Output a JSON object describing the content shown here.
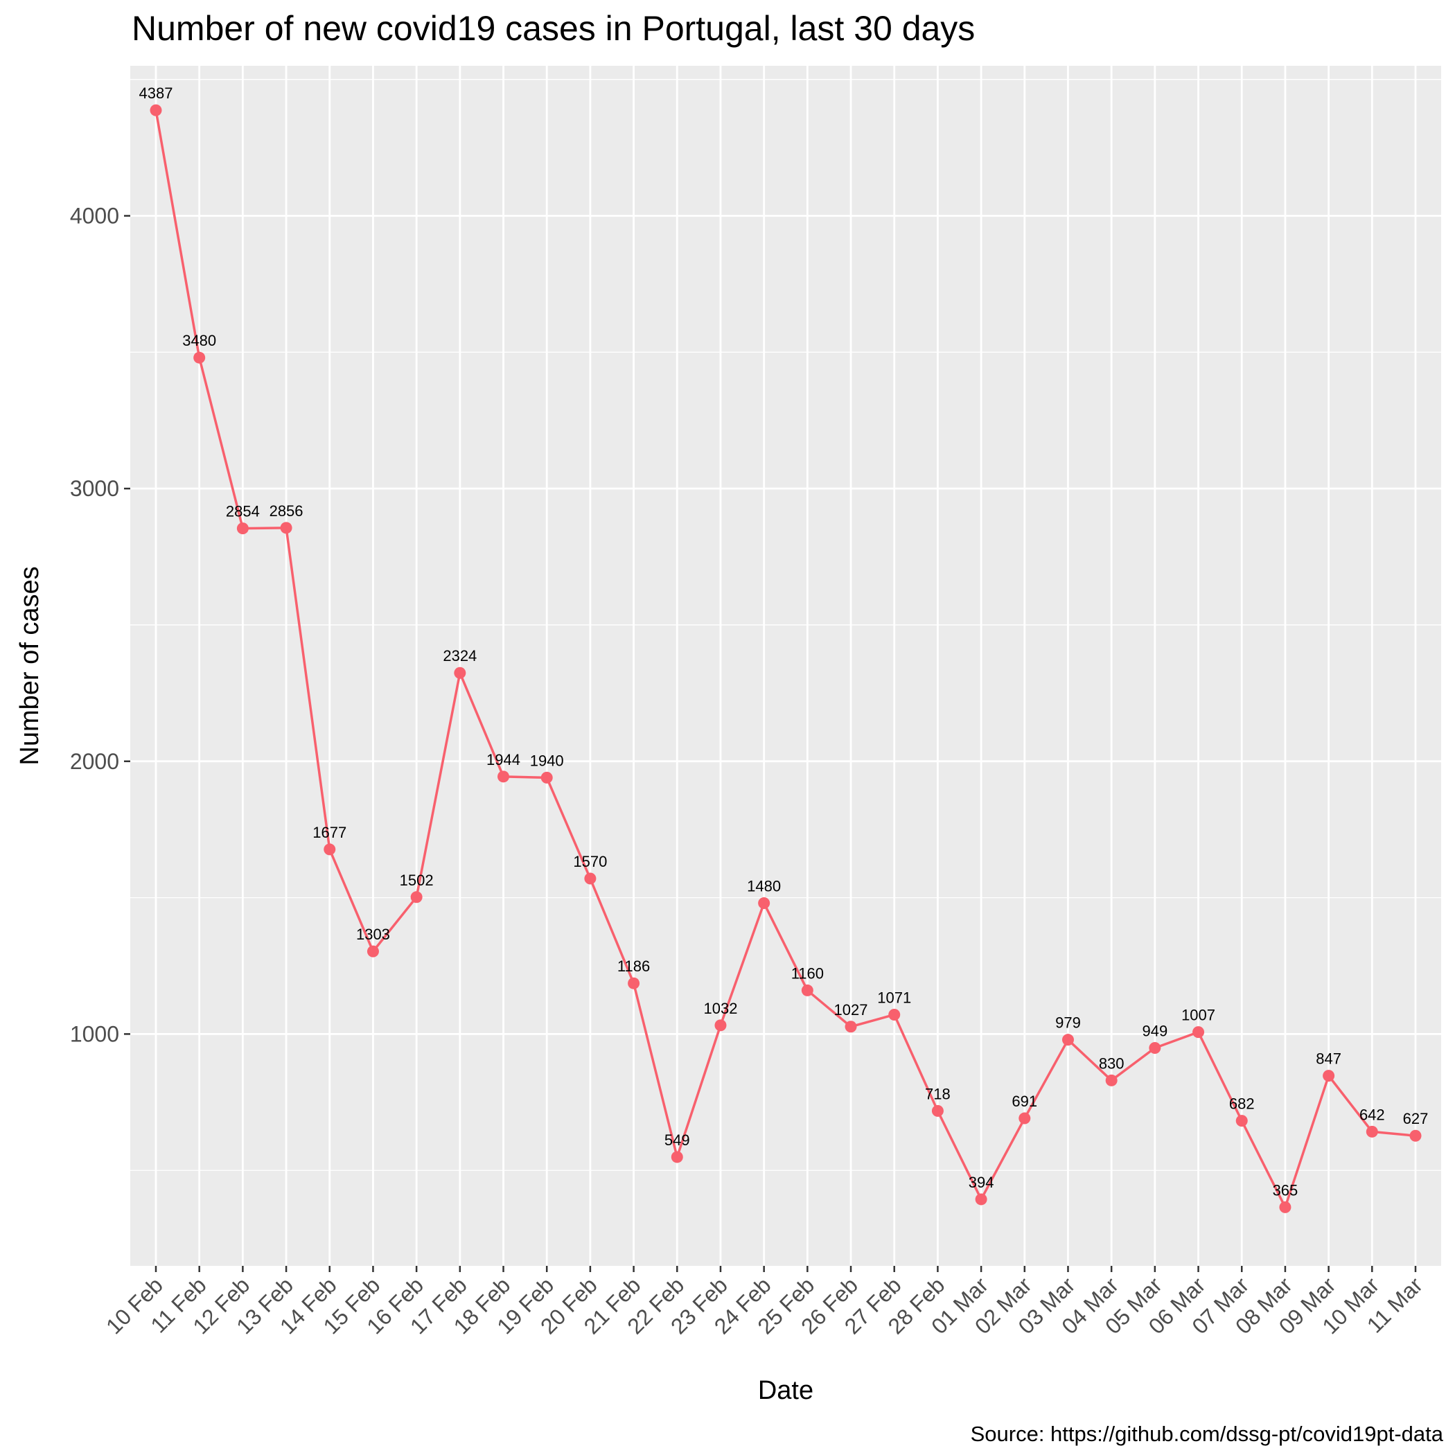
{
  "chart_data": {
    "type": "line",
    "title": "Number of new covid19 cases in Portugal, last 30 days",
    "xlabel": "Date",
    "ylabel": "Number of cases",
    "caption": "Source: https://github.com/dssg-pt/covid19pt-data",
    "ylim": [
      150,
      4550
    ],
    "yticks": [
      1000,
      2000,
      3000,
      4000
    ],
    "grid": true,
    "line_color": "#f8606d",
    "panel_color": "#ebebeb",
    "categories": [
      "10 Feb",
      "11 Feb",
      "12 Feb",
      "13 Feb",
      "14 Feb",
      "15 Feb",
      "16 Feb",
      "17 Feb",
      "18 Feb",
      "19 Feb",
      "20 Feb",
      "21 Feb",
      "22 Feb",
      "23 Feb",
      "24 Feb",
      "25 Feb",
      "26 Feb",
      "27 Feb",
      "28 Feb",
      "01 Mar",
      "02 Mar",
      "03 Mar",
      "04 Mar",
      "05 Mar",
      "06 Mar",
      "07 Mar",
      "08 Mar",
      "09 Mar",
      "10 Mar",
      "11 Mar"
    ],
    "values": [
      4387,
      3480,
      2854,
      2856,
      1677,
      1303,
      1502,
      2324,
      1944,
      1940,
      1570,
      1186,
      549,
      1032,
      1480,
      1160,
      1027,
      1071,
      718,
      394,
      691,
      979,
      830,
      949,
      1007,
      682,
      365,
      847,
      642,
      627
    ]
  }
}
